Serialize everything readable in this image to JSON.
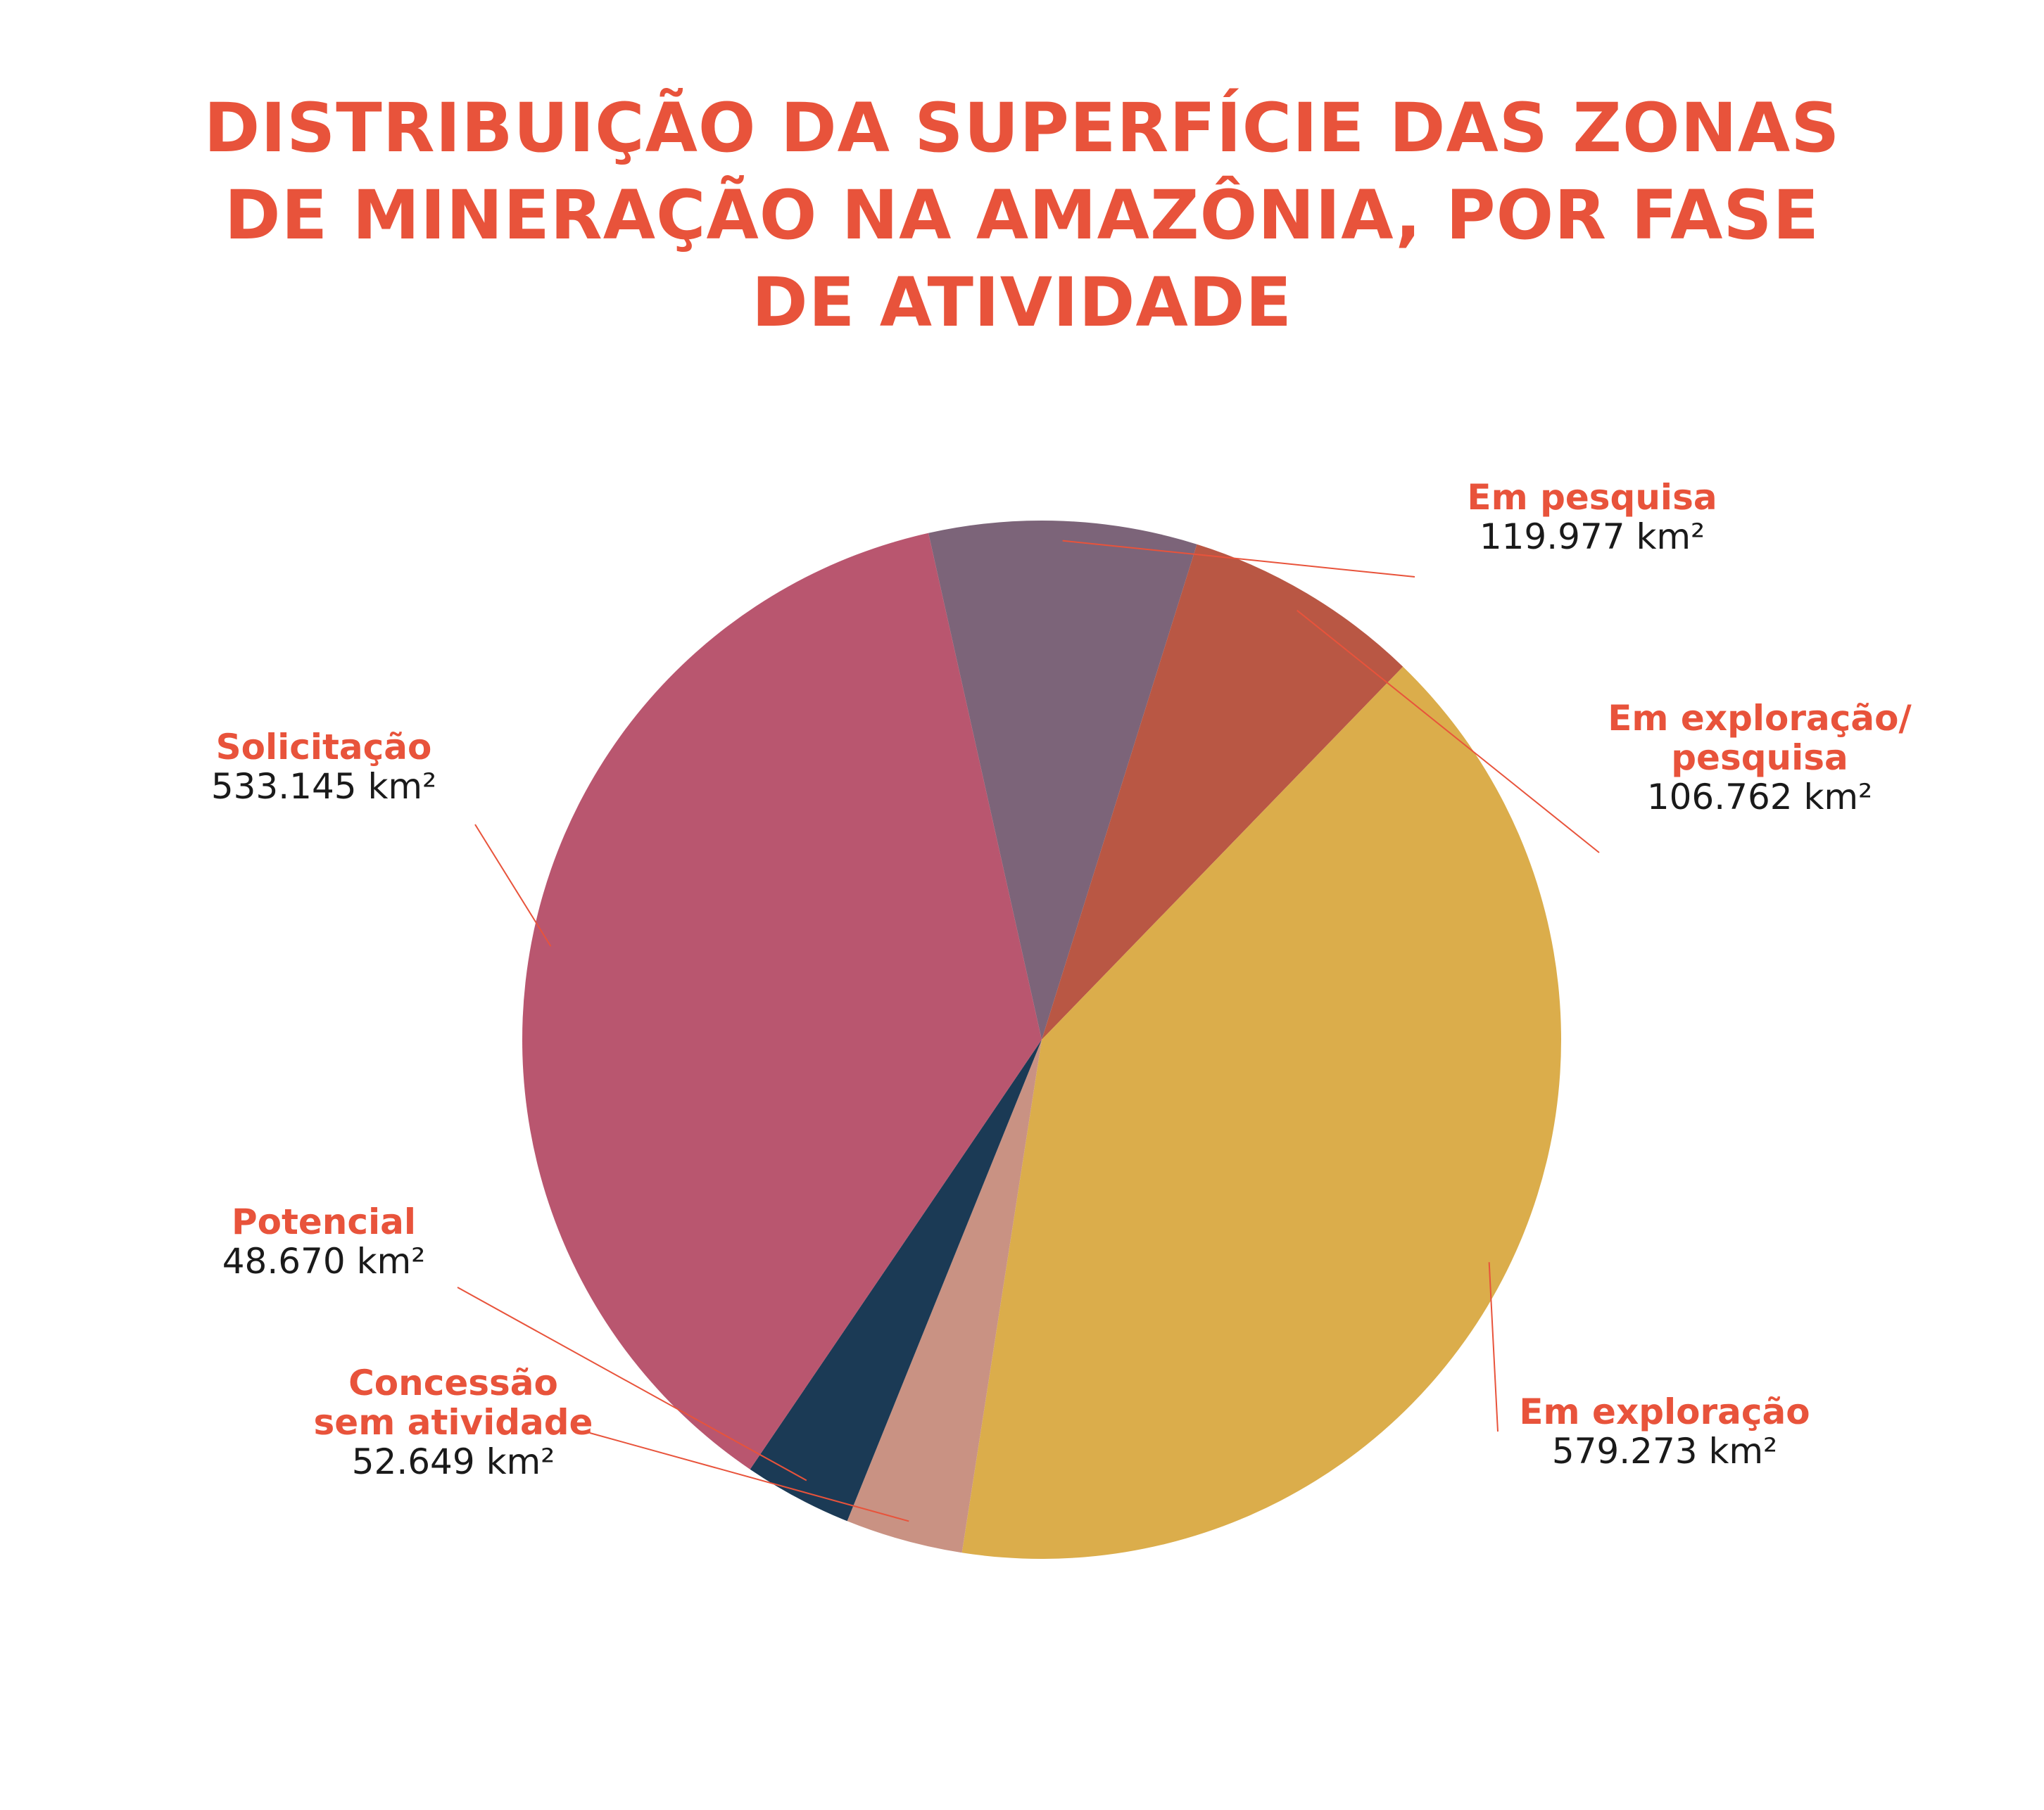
{
  "title_lines": [
    "DISTRIBUIÇÃO DA SUPERFÍCIE DAS ZONAS",
    "DE MINERAÇÃO NA AMAZÔNIA, POR FASE",
    "DE ATIVIDADE"
  ],
  "colors": {
    "title": "#e8533b",
    "label_name": "#e8533b",
    "label_value": "#1a1a1a",
    "leader_line": "#e8533b"
  },
  "chart_data": {
    "type": "pie",
    "title": "DISTRIBUIÇÃO DA SUPERFÍCIE DAS ZONAS DE MINERAÇÃO NA AMAZÔNIA, POR FASE DE ATIVIDADE",
    "unit": "km²",
    "start_at": "left of top-center, clockwise",
    "slices": [
      {
        "key": "em_pesquisa",
        "label_lines": [
          "Em pesquisa"
        ],
        "value": 119977,
        "value_label": "119.977 km²",
        "color": "#7c6479"
      },
      {
        "key": "em_exploracao_pesquisa",
        "label_lines": [
          "Em exploração/",
          "pesquisa"
        ],
        "value": 106762,
        "value_label": "106.762 km²",
        "color": "#b95744"
      },
      {
        "key": "em_exploracao",
        "label_lines": [
          "Em exploração"
        ],
        "value": 579273,
        "value_label": "579.273 km²",
        "color": "#dbad4b"
      },
      {
        "key": "concessao_sem_atividade",
        "label_lines": [
          "Concessão",
          "sem atividade"
        ],
        "value": 52649,
        "value_label": "52.649 km²",
        "color": "#c99283"
      },
      {
        "key": "potencial",
        "label_lines": [
          "Potencial"
        ],
        "value": 48670,
        "value_label": "48.670 km²",
        "color": "#1b3a55"
      },
      {
        "key": "solicitacao",
        "label_lines": [
          "Solicitação"
        ],
        "value": 533145,
        "value_label": "533.145 km²",
        "color": "#b9566f"
      }
    ]
  }
}
